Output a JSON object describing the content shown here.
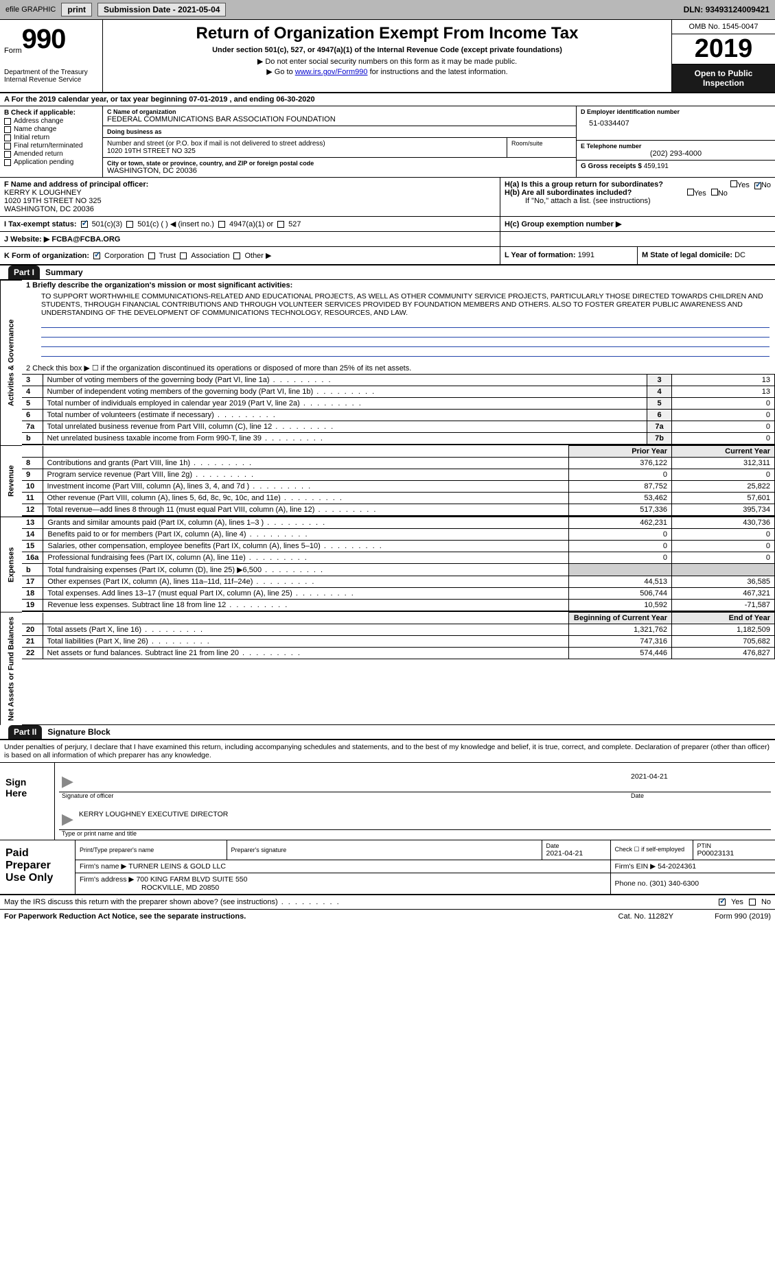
{
  "topbar": {
    "efile": "efile GRAPHIC",
    "print": "print",
    "sub_date_label": "Submission Date - ",
    "sub_date": "2021-05-04",
    "dln_label": "DLN: ",
    "dln": "93493124009421"
  },
  "head": {
    "form_word": "Form",
    "form_num": "990",
    "dept": "Department of the Treasury\nInternal Revenue Service",
    "title": "Return of Organization Exempt From Income Tax",
    "subtitle": "Under section 501(c), 527, or 4947(a)(1) of the Internal Revenue Code (except private foundations)",
    "arrow1": "▶ Do not enter social security numbers on this form as it may be made public.",
    "arrow2_pre": "▶ Go to ",
    "arrow2_link": "www.irs.gov/Form990",
    "arrow2_post": " for instructions and the latest information.",
    "omb": "OMB No. 1545-0047",
    "year": "2019",
    "open": "Open to Public Inspection"
  },
  "row_a": "A For the 2019 calendar year, or tax year beginning 07-01-2019   , and ending 06-30-2020",
  "b": {
    "hdr": "B Check if applicable:",
    "items": [
      "Address change",
      "Name change",
      "Initial return",
      "Final return/terminated",
      "Amended return",
      "Application pending"
    ]
  },
  "c": {
    "name_lbl": "C Name of organization",
    "name": "FEDERAL COMMUNICATIONS BAR ASSOCIATION FOUNDATION",
    "dba_lbl": "Doing business as",
    "dba": "",
    "addr_lbl": "Number and street (or P.O. box if mail is not delivered to street address)",
    "addr": "1020 19TH STREET NO 325",
    "room_lbl": "Room/suite",
    "city_lbl": "City or town, state or province, country, and ZIP or foreign postal code",
    "city": "WASHINGTON, DC  20036"
  },
  "d": {
    "lbl": "D Employer identification number",
    "val": "51-0334407"
  },
  "e": {
    "lbl": "E Telephone number",
    "val": "(202) 293-4000"
  },
  "g": {
    "lbl": "G Gross receipts $ ",
    "val": "459,191"
  },
  "f": {
    "lbl": "F  Name and address of principal officer:",
    "name": "KERRY K LOUGHNEY",
    "addr1": "1020 19TH STREET NO 325",
    "addr2": "WASHINGTON, DC  20036"
  },
  "h": {
    "a_lbl": "H(a)  Is this a group return for subordinates?",
    "b_lbl": "H(b)  Are all subordinates included?",
    "b_note": "If \"No,\" attach a list. (see instructions)",
    "c_lbl": "H(c)  Group exemption number ▶",
    "yes": "Yes",
    "no": "No"
  },
  "i": {
    "lbl": "I  Tax-exempt status:",
    "opt1": "501(c)(3)",
    "opt2": "501(c) (   ) ◀ (insert no.)",
    "opt3": "4947(a)(1) or",
    "opt4": "527"
  },
  "j": {
    "lbl": "J  Website: ▶ ",
    "val": "FCBA@FCBA.ORG"
  },
  "k": {
    "lbl": "K Form of organization:",
    "opts": [
      "Corporation",
      "Trust",
      "Association",
      "Other ▶"
    ]
  },
  "l": {
    "lbl": "L Year of formation: ",
    "val": "1991"
  },
  "m": {
    "lbl": "M State of legal domicile: ",
    "val": "DC"
  },
  "parts": {
    "p1": "Part I",
    "p1_title": "Summary",
    "p2": "Part II",
    "p2_title": "Signature Block"
  },
  "sides": {
    "gov": "Activities & Governance",
    "rev": "Revenue",
    "exp": "Expenses",
    "net": "Net Assets or Fund Balances"
  },
  "summary": {
    "line1_lbl": "1  Briefly describe the organization's mission or most significant activities:",
    "mission": "TO SUPPORT WORTHWHILE COMMUNICATIONS-RELATED AND EDUCATIONAL PROJECTS, AS WELL AS OTHER COMMUNITY SERVICE PROJECTS, PARTICULARLY THOSE DIRECTED TOWARDS CHILDREN AND STUDENTS, THROUGH FINANCIAL CONTRIBUTIONS AND THROUGH VOLUNTEER SERVICES PROVIDED BY FOUNDATION MEMBERS AND OTHERS. ALSO TO FOSTER GREATER PUBLIC AWARENESS AND UNDERSTANDING OF THE DEVELOPMENT OF COMMUNICATIONS TECHNOLOGY, RESOURCES, AND LAW.",
    "line2": "2  Check this box ▶ ☐  if the organization discontinued its operations or disposed of more than 25% of its net assets.",
    "rows_gov": [
      {
        "n": "3",
        "desc": "Number of voting members of the governing body (Part VI, line 1a)",
        "box": "3",
        "val": "13"
      },
      {
        "n": "4",
        "desc": "Number of independent voting members of the governing body (Part VI, line 1b)",
        "box": "4",
        "val": "13"
      },
      {
        "n": "5",
        "desc": "Total number of individuals employed in calendar year 2019 (Part V, line 2a)",
        "box": "5",
        "val": "0"
      },
      {
        "n": "6",
        "desc": "Total number of volunteers (estimate if necessary)",
        "box": "6",
        "val": "0"
      },
      {
        "n": "7a",
        "desc": "Total unrelated business revenue from Part VIII, column (C), line 12",
        "box": "7a",
        "val": "0"
      },
      {
        "n": "b",
        "desc": "Net unrelated business taxable income from Form 990-T, line 39",
        "box": "7b",
        "val": "0"
      }
    ],
    "col_headers": {
      "py": "Prior Year",
      "cy": "Current Year"
    },
    "rows_rev": [
      {
        "n": "8",
        "desc": "Contributions and grants (Part VIII, line 1h)",
        "py": "376,122",
        "cy": "312,311"
      },
      {
        "n": "9",
        "desc": "Program service revenue (Part VIII, line 2g)",
        "py": "0",
        "cy": "0"
      },
      {
        "n": "10",
        "desc": "Investment income (Part VIII, column (A), lines 3, 4, and 7d )",
        "py": "87,752",
        "cy": "25,822"
      },
      {
        "n": "11",
        "desc": "Other revenue (Part VIII, column (A), lines 5, 6d, 8c, 9c, 10c, and 11e)",
        "py": "53,462",
        "cy": "57,601"
      },
      {
        "n": "12",
        "desc": "Total revenue—add lines 8 through 11 (must equal Part VIII, column (A), line 12)",
        "py": "517,336",
        "cy": "395,734"
      }
    ],
    "rows_exp": [
      {
        "n": "13",
        "desc": "Grants and similar amounts paid (Part IX, column (A), lines 1–3 )",
        "py": "462,231",
        "cy": "430,736"
      },
      {
        "n": "14",
        "desc": "Benefits paid to or for members (Part IX, column (A), line 4)",
        "py": "0",
        "cy": "0"
      },
      {
        "n": "15",
        "desc": "Salaries, other compensation, employee benefits (Part IX, column (A), lines 5–10)",
        "py": "0",
        "cy": "0"
      },
      {
        "n": "16a",
        "desc": "Professional fundraising fees (Part IX, column (A), line 11e)",
        "py": "0",
        "cy": "0"
      },
      {
        "n": "b",
        "desc": "Total fundraising expenses (Part IX, column (D), line 25) ▶6,500",
        "py": "",
        "cy": ""
      },
      {
        "n": "17",
        "desc": "Other expenses (Part IX, column (A), lines 11a–11d, 11f–24e)",
        "py": "44,513",
        "cy": "36,585"
      },
      {
        "n": "18",
        "desc": "Total expenses. Add lines 13–17 (must equal Part IX, column (A), line 25)",
        "py": "506,744",
        "cy": "467,321"
      },
      {
        "n": "19",
        "desc": "Revenue less expenses. Subtract line 18 from line 12",
        "py": "10,592",
        "cy": "-71,587"
      }
    ],
    "net_headers": {
      "py": "Beginning of Current Year",
      "cy": "End of Year"
    },
    "rows_net": [
      {
        "n": "20",
        "desc": "Total assets (Part X, line 16)",
        "py": "1,321,762",
        "cy": "1,182,509"
      },
      {
        "n": "21",
        "desc": "Total liabilities (Part X, line 26)",
        "py": "747,316",
        "cy": "705,682"
      },
      {
        "n": "22",
        "desc": "Net assets or fund balances. Subtract line 21 from line 20",
        "py": "574,446",
        "cy": "476,827"
      }
    ]
  },
  "sig": {
    "intro": "Under penalties of perjury, I declare that I have examined this return, including accompanying schedules and statements, and to the best of my knowledge and belief, it is true, correct, and complete. Declaration of preparer (other than officer) is based on all information of which preparer has any knowledge.",
    "sign_here": "Sign Here",
    "sig_officer_lbl": "Signature of officer",
    "sig_date": "2021-04-21",
    "date_lbl": "Date",
    "name_title": "KERRY LOUGHNEY EXECUTIVE DIRECTOR",
    "name_title_lbl": "Type or print name and title",
    "paid": "Paid Preparer Use Only",
    "prep_name_lbl": "Print/Type preparer's name",
    "prep_sig_lbl": "Preparer's signature",
    "prep_date_lbl": "Date",
    "prep_date": "2021-04-21",
    "self_emp": "Check ☐ if self-employed",
    "ptin_lbl": "PTIN",
    "ptin": "P00023131",
    "firm_name_lbl": "Firm's name    ▶ ",
    "firm_name": "TURNER LEINS & GOLD LLC",
    "firm_ein_lbl": "Firm's EIN ▶ ",
    "firm_ein": "54-2024361",
    "firm_addr_lbl": "Firm's address ▶ ",
    "firm_addr": "700 KING FARM BLVD SUITE 550",
    "firm_city": "ROCKVILLE, MD  20850",
    "phone_lbl": "Phone no. ",
    "phone": "(301) 340-6300"
  },
  "footer": {
    "discuss": "May the IRS discuss this return with the preparer shown above? (see instructions)",
    "yes": "Yes",
    "no": "No",
    "pra": "For Paperwork Reduction Act Notice, see the separate instructions.",
    "cat": "Cat. No. 11282Y",
    "form": "Form 990 (2019)"
  },
  "colors": {
    "topbar_bg": "#b8b8b8",
    "dark": "#1a1a1a",
    "link": "#0000cc",
    "check": "#0d4f8b",
    "blueline": "#2244aa"
  }
}
